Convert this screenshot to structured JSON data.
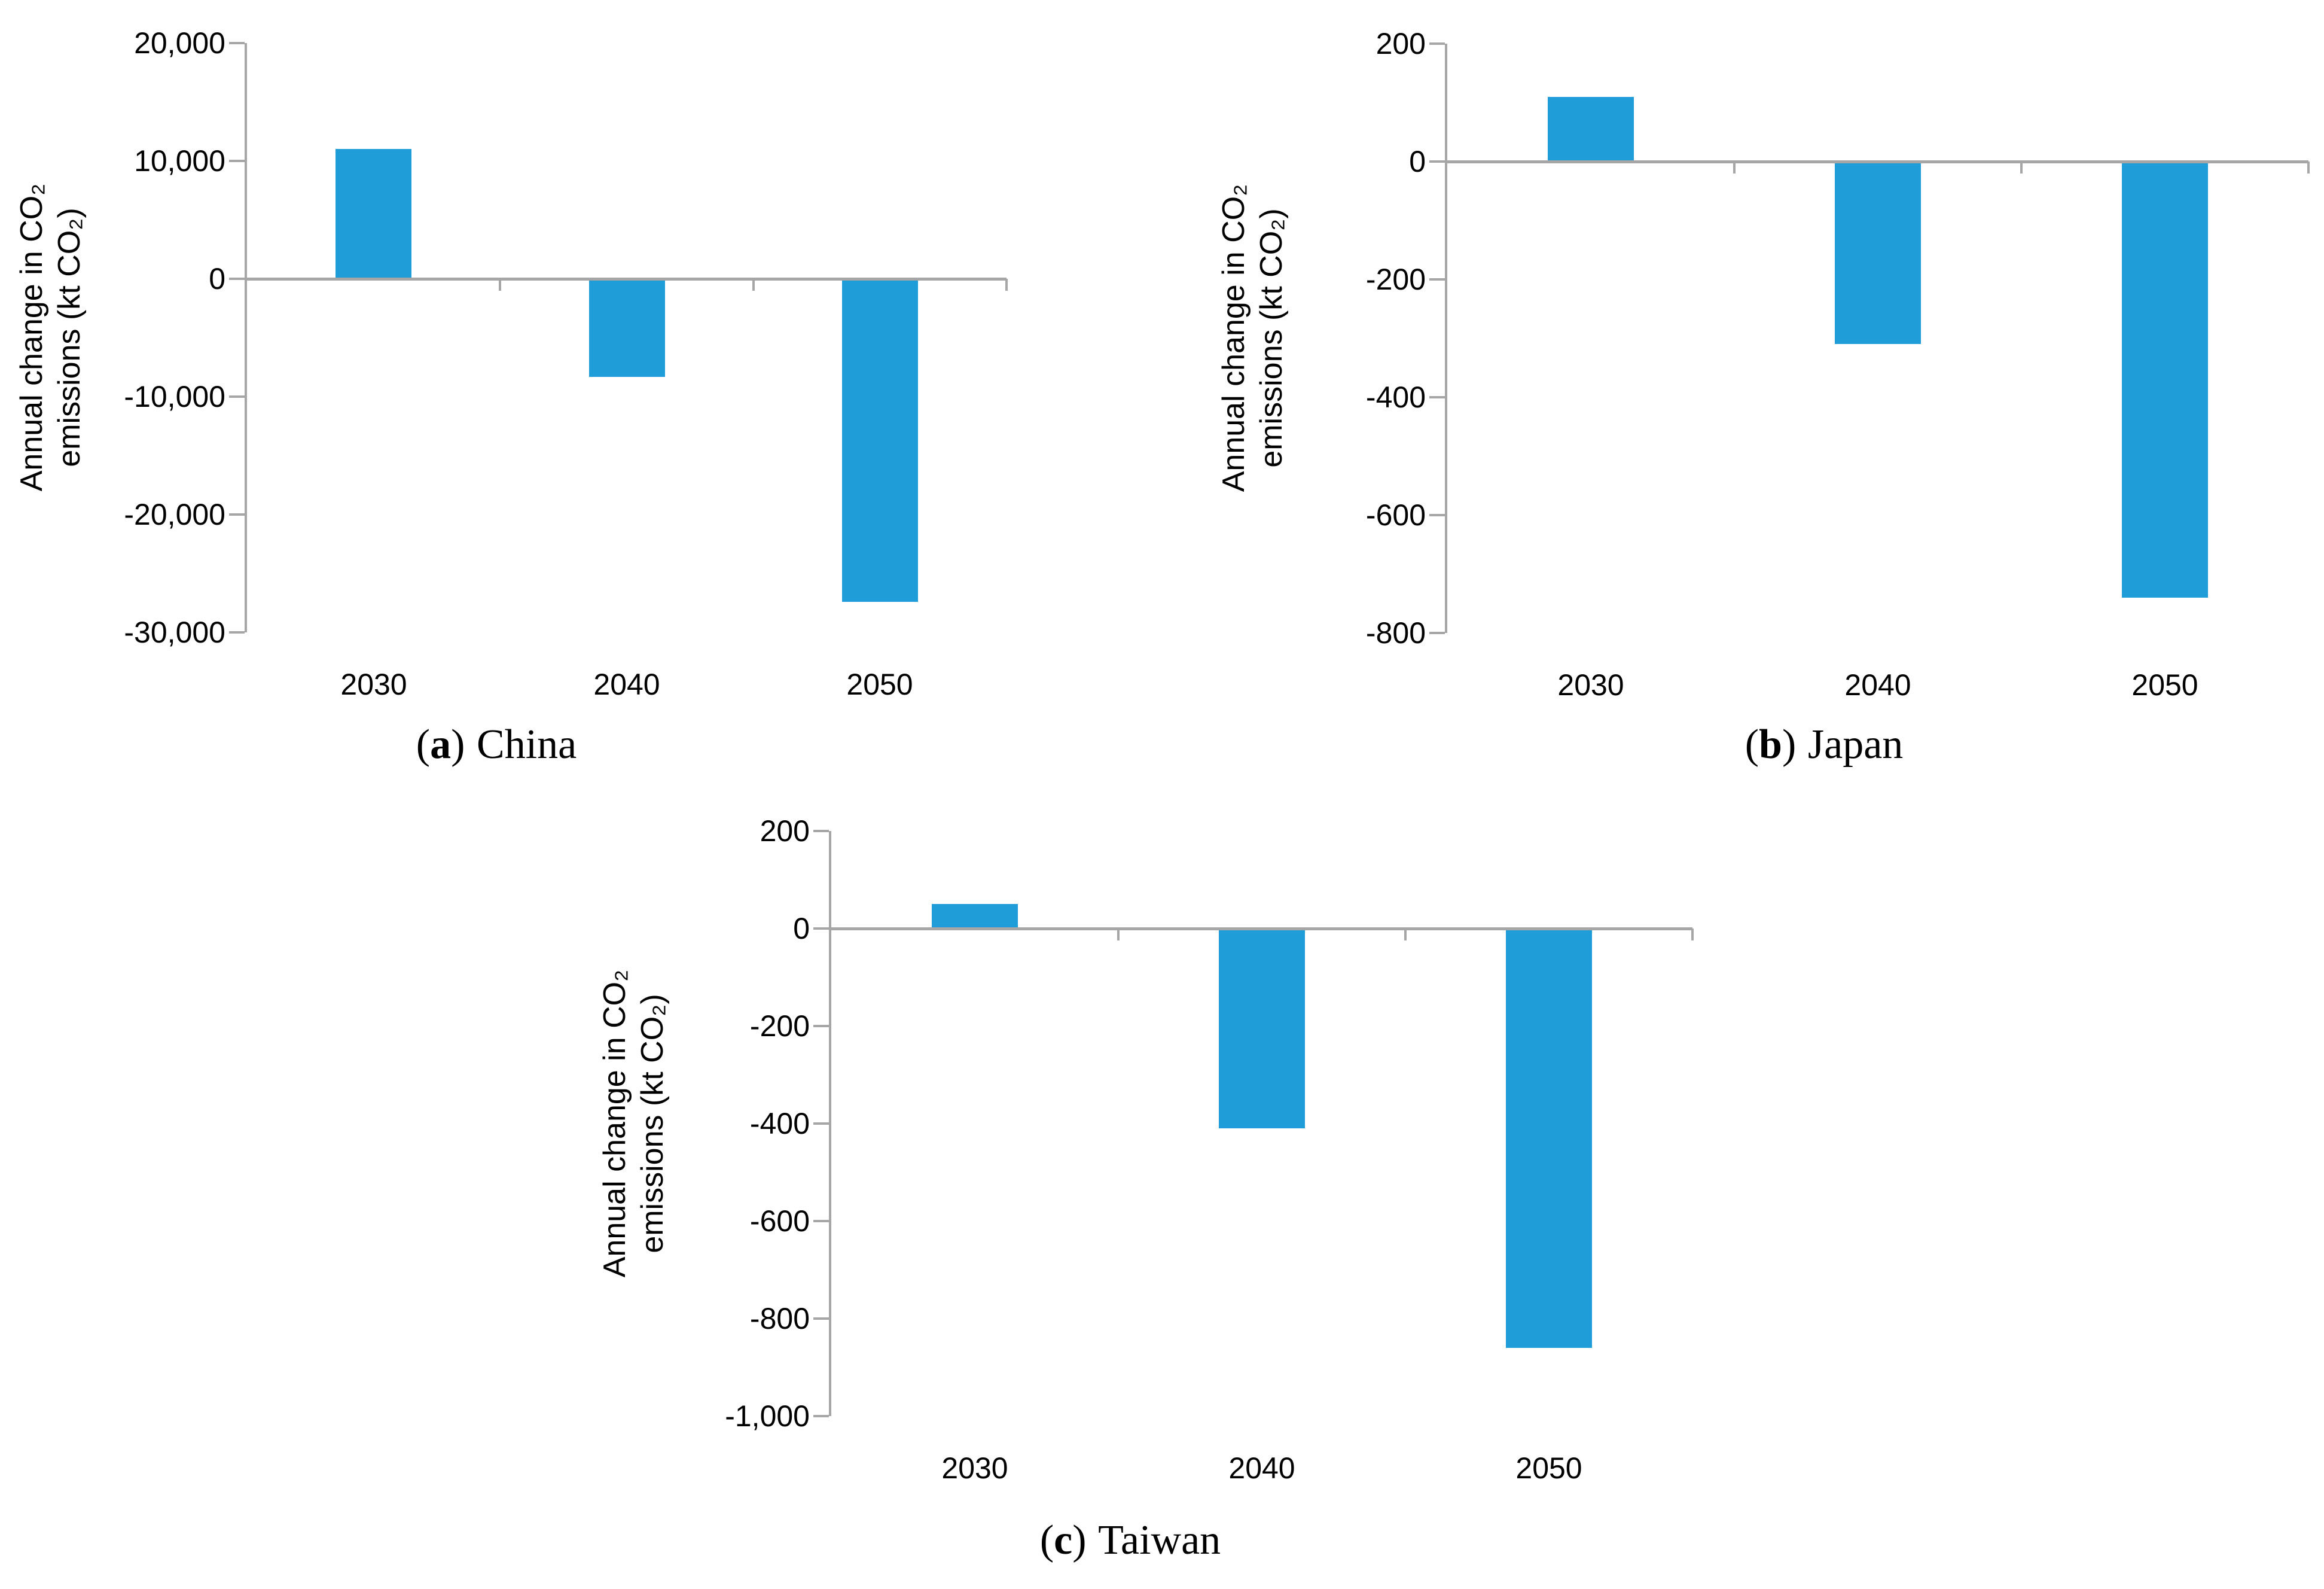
{
  "figure": {
    "background": "#ffffff",
    "text_color": "#000000"
  },
  "chart_data": [
    {
      "id": "china",
      "type": "bar",
      "caption": {
        "open": "(",
        "letter": "a",
        "close": ")",
        "label": "China"
      },
      "ylabel_line1": "Annual change in CO₂",
      "ylabel_line2": "emissions (kt CO₂)",
      "categories": [
        "2030",
        "2040",
        "2050"
      ],
      "values": [
        11000,
        -8300,
        -27400
      ],
      "ylim": [
        -30000,
        20000
      ],
      "yticks": [
        {
          "value": 20000,
          "label": "20,000"
        },
        {
          "value": 10000,
          "label": "10,000"
        },
        {
          "value": 0,
          "label": "0"
        },
        {
          "value": -10000,
          "label": "-10,000"
        },
        {
          "value": -20000,
          "label": "-20,000"
        },
        {
          "value": -30000,
          "label": "-30,000"
        }
      ],
      "bar_color": "#1F9DD8",
      "axis_color": "#A6A6A6",
      "grid": false,
      "legend": "none"
    },
    {
      "id": "japan",
      "type": "bar",
      "caption": {
        "open": "(",
        "letter": "b",
        "close": ")",
        "label": "Japan"
      },
      "ylabel_line1": "Annual change in CO₂",
      "ylabel_line2": "emissions (kt CO₂)",
      "categories": [
        "2030",
        "2040",
        "2050"
      ],
      "values": [
        110,
        -310,
        -740
      ],
      "ylim": [
        -800,
        200
      ],
      "yticks": [
        {
          "value": 200,
          "label": "200"
        },
        {
          "value": 0,
          "label": "0"
        },
        {
          "value": -200,
          "label": "-200"
        },
        {
          "value": -400,
          "label": "-400"
        },
        {
          "value": -600,
          "label": "-600"
        },
        {
          "value": -800,
          "label": "-800"
        }
      ],
      "bar_color": "#1F9DD8",
      "axis_color": "#A6A6A6",
      "grid": false,
      "legend": "none"
    },
    {
      "id": "taiwan",
      "type": "bar",
      "caption": {
        "open": "(",
        "letter": "c",
        "close": ")",
        "label": "Taiwan"
      },
      "ylabel_line1": "Annual change in CO₂",
      "ylabel_line2": "emissions (kt CO₂)",
      "categories": [
        "2030",
        "2040",
        "2050"
      ],
      "values": [
        50,
        -410,
        -860
      ],
      "ylim": [
        -1000,
        200
      ],
      "yticks": [
        {
          "value": 200,
          "label": "200"
        },
        {
          "value": 0,
          "label": "0"
        },
        {
          "value": -200,
          "label": "-200"
        },
        {
          "value": -400,
          "label": "-400"
        },
        {
          "value": -600,
          "label": "-600"
        },
        {
          "value": -800,
          "label": "-800"
        },
        {
          "value": -1000,
          "label": "-1,000"
        }
      ],
      "bar_color": "#1F9DD8",
      "axis_color": "#A6A6A6",
      "grid": false,
      "legend": "none"
    }
  ]
}
